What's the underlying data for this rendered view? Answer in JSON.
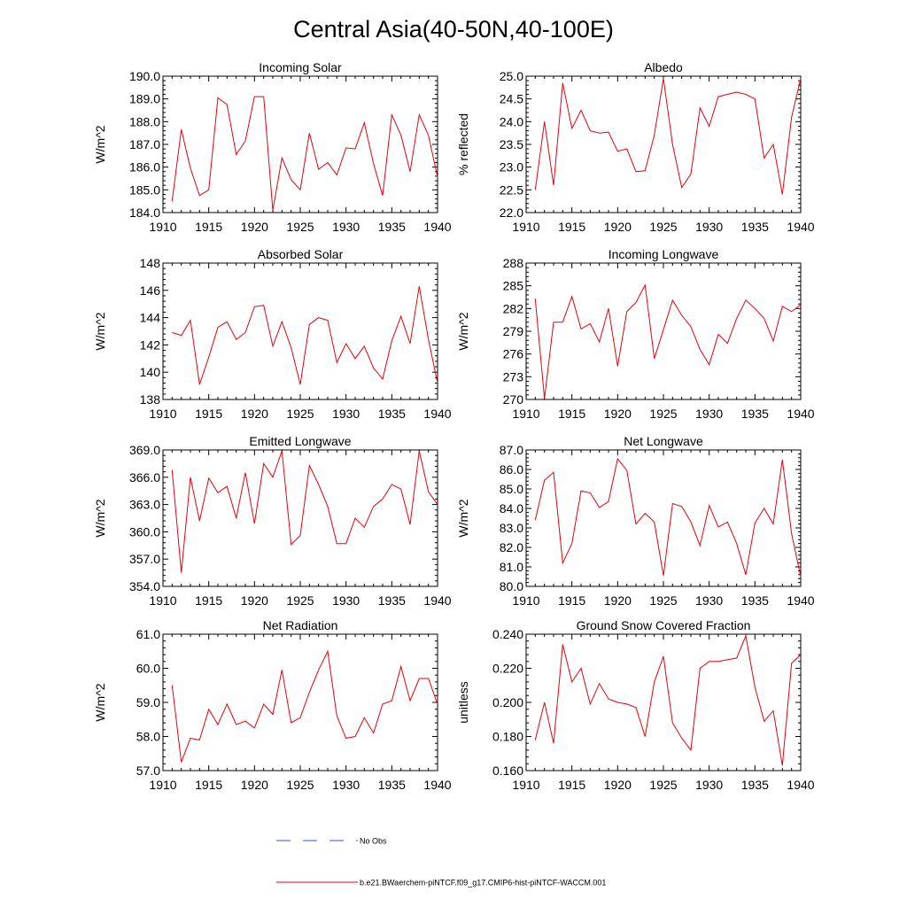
{
  "figure": {
    "title": "Central Asia(40-50N,40-100E)",
    "line_color": "#e8000b",
    "obs_color": "#3a4fd0"
  },
  "legend": {
    "entries": [
      {
        "label": "No Obs",
        "style": "dashed",
        "color": "#3a4fd0"
      },
      {
        "label": "b.e21.BWaerchem-piNTCF.f09_g17.CMIP6-hist-piNTCF-WACCM.001",
        "style": "solid",
        "color": "#e8000b"
      }
    ]
  },
  "chart_data": [
    {
      "type": "line",
      "title": "Incoming Solar",
      "ylabel": "W/m^2",
      "xlim": [
        1910,
        1940
      ],
      "ylim": [
        184.0,
        190.0
      ],
      "xticks": [
        1910,
        1915,
        1920,
        1925,
        1930,
        1935,
        1940
      ],
      "yticks": [
        184.0,
        185.0,
        186.0,
        187.0,
        188.0,
        189.0,
        190.0
      ],
      "ytick_labels": [
        "184.0",
        "185.0",
        "186.0",
        "187.0",
        "188.0",
        "189.0",
        "190.0"
      ],
      "x": [
        1911,
        1912,
        1913,
        1914,
        1915,
        1916,
        1917,
        1918,
        1919,
        1920,
        1921,
        1922,
        1923,
        1924,
        1925,
        1926,
        1927,
        1928,
        1929,
        1930,
        1931,
        1932,
        1933,
        1934,
        1935,
        1936,
        1937,
        1938,
        1939,
        1940
      ],
      "series": [
        {
          "values": [
            184.5,
            187.65,
            185.95,
            184.75,
            185.0,
            189.05,
            188.75,
            186.55,
            187.15,
            189.1,
            189.1,
            184.1,
            186.4,
            185.45,
            185.0,
            187.5,
            185.9,
            186.2,
            185.65,
            186.85,
            186.8,
            187.95,
            186.15,
            184.75,
            188.3,
            187.4,
            185.8,
            188.3,
            187.4,
            185.55
          ]
        }
      ]
    },
    {
      "type": "line",
      "title": "Albedo",
      "ylabel": "% reflected",
      "xlim": [
        1910,
        1940
      ],
      "ylim": [
        22.0,
        25.0
      ],
      "xticks": [
        1910,
        1915,
        1920,
        1925,
        1930,
        1935,
        1940
      ],
      "yticks": [
        22.0,
        22.5,
        23.0,
        23.5,
        24.0,
        24.5,
        25.0
      ],
      "ytick_labels": [
        "22.0",
        "22.5",
        "23.0",
        "23.5",
        "24.0",
        "24.5",
        "25.0"
      ],
      "x": [
        1911,
        1912,
        1913,
        1914,
        1915,
        1916,
        1917,
        1918,
        1919,
        1920,
        1921,
        1922,
        1923,
        1924,
        1925,
        1926,
        1927,
        1928,
        1929,
        1930,
        1931,
        1932,
        1933,
        1934,
        1935,
        1936,
        1937,
        1938,
        1939,
        1940
      ],
      "series": [
        {
          "values": [
            22.5,
            24.0,
            22.6,
            24.85,
            23.85,
            24.25,
            23.8,
            23.75,
            23.77,
            23.35,
            23.4,
            22.9,
            22.92,
            23.7,
            24.95,
            23.5,
            22.55,
            22.85,
            24.3,
            23.9,
            24.55,
            24.6,
            24.65,
            24.6,
            24.5,
            23.2,
            23.5,
            22.4,
            24.1,
            24.95
          ]
        }
      ]
    },
    {
      "type": "line",
      "title": "Absorbed Solar",
      "ylabel": "W/m^2",
      "xlim": [
        1910,
        1940
      ],
      "ylim": [
        138,
        148
      ],
      "xticks": [
        1910,
        1915,
        1920,
        1925,
        1930,
        1935,
        1940
      ],
      "yticks": [
        138,
        140,
        142,
        144,
        146,
        148
      ],
      "ytick_labels": [
        "138",
        "140",
        "142",
        "144",
        "146",
        "148"
      ],
      "x": [
        1911,
        1912,
        1913,
        1914,
        1915,
        1916,
        1917,
        1918,
        1919,
        1920,
        1921,
        1922,
        1923,
        1924,
        1925,
        1926,
        1927,
        1928,
        1929,
        1930,
        1931,
        1932,
        1933,
        1934,
        1935,
        1936,
        1937,
        1938,
        1939,
        1940
      ],
      "series": [
        {
          "values": [
            142.9,
            142.7,
            143.8,
            139.1,
            141.1,
            143.3,
            143.7,
            142.4,
            142.9,
            144.8,
            144.9,
            141.9,
            143.7,
            141.8,
            139.1,
            143.5,
            144.0,
            143.8,
            140.7,
            142.1,
            141.0,
            141.9,
            140.3,
            139.5,
            142.3,
            144.1,
            142.1,
            146.3,
            142.4,
            139.2
          ]
        }
      ]
    },
    {
      "type": "line",
      "title": "Incoming Longwave",
      "ylabel": "W/m^2",
      "xlim": [
        1910,
        1940
      ],
      "ylim": [
        270,
        288
      ],
      "xticks": [
        1910,
        1915,
        1920,
        1925,
        1930,
        1935,
        1940
      ],
      "yticks": [
        270,
        273,
        276,
        279,
        282,
        285,
        288
      ],
      "ytick_labels": [
        "270",
        "273",
        "276",
        "279",
        "282",
        "285",
        "288"
      ],
      "x": [
        1911,
        1912,
        1913,
        1914,
        1915,
        1916,
        1917,
        1918,
        1919,
        1920,
        1921,
        1922,
        1923,
        1924,
        1925,
        1926,
        1927,
        1928,
        1929,
        1930,
        1931,
        1932,
        1933,
        1934,
        1935,
        1936,
        1937,
        1938,
        1939,
        1940
      ],
      "series": [
        {
          "values": [
            283.3,
            270.1,
            280.2,
            280.2,
            283.6,
            279.3,
            280.0,
            277.6,
            282.0,
            274.4,
            281.6,
            282.8,
            285.1,
            275.4,
            279.2,
            283.1,
            281.1,
            279.6,
            276.6,
            274.6,
            278.6,
            277.4,
            280.7,
            283.1,
            282.0,
            280.7,
            277.7,
            282.3,
            281.6,
            282.5
          ]
        }
      ]
    },
    {
      "type": "line",
      "title": "Emitted Longwave",
      "ylabel": "W/m^2",
      "xlim": [
        1910,
        1940
      ],
      "ylim": [
        354.0,
        369.0
      ],
      "xticks": [
        1910,
        1915,
        1920,
        1925,
        1930,
        1935,
        1940
      ],
      "yticks": [
        354.0,
        357.0,
        360.0,
        363.0,
        366.0,
        369.0
      ],
      "ytick_labels": [
        "354.0",
        "357.0",
        "360.0",
        "363.0",
        "366.0",
        "369.0"
      ],
      "x": [
        1911,
        1912,
        1913,
        1914,
        1915,
        1916,
        1917,
        1918,
        1919,
        1920,
        1921,
        1922,
        1923,
        1924,
        1925,
        1926,
        1927,
        1928,
        1929,
        1930,
        1931,
        1932,
        1933,
        1934,
        1935,
        1936,
        1937,
        1938,
        1939,
        1940
      ],
      "series": [
        {
          "values": [
            366.8,
            355.5,
            366.0,
            361.2,
            365.9,
            364.3,
            365.0,
            361.5,
            366.5,
            360.9,
            367.5,
            366.0,
            368.9,
            358.6,
            359.6,
            367.3,
            365.2,
            362.8,
            358.7,
            358.7,
            361.5,
            360.5,
            362.8,
            363.6,
            365.2,
            364.7,
            360.8,
            368.9,
            364.4,
            363.0
          ]
        }
      ]
    },
    {
      "type": "line",
      "title": "Net Longwave",
      "ylabel": "W/m^2",
      "xlim": [
        1910,
        1940
      ],
      "ylim": [
        80.0,
        87.0
      ],
      "xticks": [
        1910,
        1915,
        1920,
        1925,
        1930,
        1935,
        1940
      ],
      "yticks": [
        80.0,
        81.0,
        82.0,
        83.0,
        84.0,
        85.0,
        86.0,
        87.0
      ],
      "ytick_labels": [
        "80.0",
        "81.0",
        "82.0",
        "83.0",
        "84.0",
        "85.0",
        "86.0",
        "87.0"
      ],
      "x": [
        1911,
        1912,
        1913,
        1914,
        1915,
        1916,
        1917,
        1918,
        1919,
        1920,
        1921,
        1922,
        1923,
        1924,
        1925,
        1926,
        1927,
        1928,
        1929,
        1930,
        1931,
        1932,
        1933,
        1934,
        1935,
        1936,
        1937,
        1938,
        1939,
        1940
      ],
      "series": [
        {
          "values": [
            83.4,
            85.45,
            85.85,
            81.2,
            82.2,
            84.9,
            84.8,
            84.05,
            84.35,
            86.55,
            85.95,
            83.2,
            83.75,
            83.3,
            80.55,
            84.25,
            84.1,
            83.3,
            82.1,
            84.15,
            83.05,
            83.3,
            82.2,
            80.6,
            83.25,
            84.0,
            83.2,
            86.5,
            82.7,
            80.5
          ]
        }
      ]
    },
    {
      "type": "line",
      "title": "Net Radiation",
      "ylabel": "W/m^2",
      "xlim": [
        1910,
        1940
      ],
      "ylim": [
        57.0,
        61.0
      ],
      "xticks": [
        1910,
        1915,
        1920,
        1925,
        1930,
        1935,
        1940
      ],
      "yticks": [
        57.0,
        58.0,
        59.0,
        60.0,
        61.0
      ],
      "ytick_labels": [
        "57.0",
        "58.0",
        "59.0",
        "60.0",
        "61.0"
      ],
      "x": [
        1911,
        1912,
        1913,
        1914,
        1915,
        1916,
        1917,
        1918,
        1919,
        1920,
        1921,
        1922,
        1923,
        1924,
        1925,
        1926,
        1927,
        1928,
        1929,
        1930,
        1931,
        1932,
        1933,
        1934,
        1935,
        1936,
        1937,
        1938,
        1939,
        1940
      ],
      "series": [
        {
          "values": [
            59.5,
            57.25,
            57.95,
            57.9,
            58.8,
            58.35,
            58.95,
            58.35,
            58.45,
            58.25,
            58.95,
            58.65,
            59.95,
            58.4,
            58.55,
            59.3,
            59.95,
            60.5,
            58.6,
            57.95,
            58.0,
            58.55,
            58.1,
            58.95,
            59.05,
            60.05,
            59.05,
            59.7,
            59.7,
            58.95
          ]
        }
      ]
    },
    {
      "type": "line",
      "title": "Ground Snow Covered Fraction",
      "ylabel": "unitless",
      "xlim": [
        1910,
        1940
      ],
      "ylim": [
        0.16,
        0.24
      ],
      "xticks": [
        1910,
        1915,
        1920,
        1925,
        1930,
        1935,
        1940
      ],
      "yticks": [
        0.16,
        0.18,
        0.2,
        0.22,
        0.24
      ],
      "ytick_labels": [
        "0.160",
        "0.180",
        "0.200",
        "0.220",
        "0.240"
      ],
      "x": [
        1911,
        1912,
        1913,
        1914,
        1915,
        1916,
        1917,
        1918,
        1919,
        1920,
        1921,
        1922,
        1923,
        1924,
        1925,
        1926,
        1927,
        1928,
        1929,
        1930,
        1931,
        1932,
        1933,
        1934,
        1935,
        1936,
        1937,
        1938,
        1939,
        1940
      ],
      "series": [
        {
          "values": [
            0.178,
            0.2,
            0.176,
            0.234,
            0.212,
            0.22,
            0.199,
            0.211,
            0.202,
            0.2,
            0.199,
            0.197,
            0.18,
            0.212,
            0.227,
            0.188,
            0.179,
            0.172,
            0.22,
            0.224,
            0.224,
            0.225,
            0.226,
            0.239,
            0.209,
            0.189,
            0.195,
            0.163,
            0.223,
            0.228
          ]
        }
      ]
    }
  ]
}
